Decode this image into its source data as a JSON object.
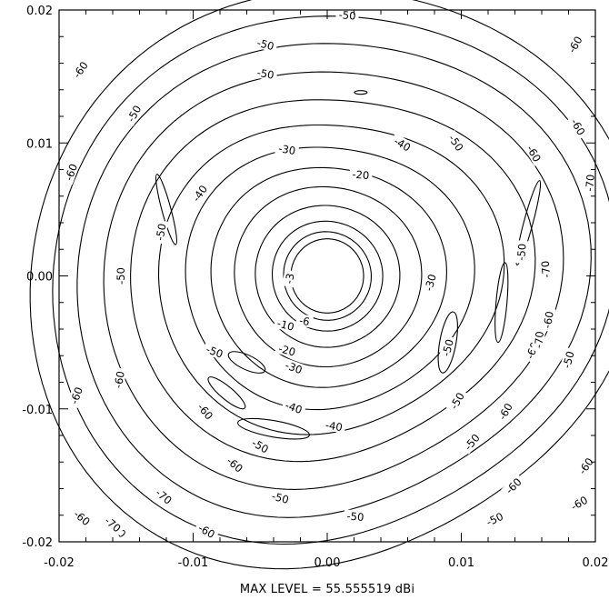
{
  "chart_data": {
    "type": "contour",
    "title": "",
    "xlabel": "",
    "ylabel": "",
    "xlim": [
      -0.02,
      0.02
    ],
    "ylim": [
      -0.02,
      0.02
    ],
    "grid": false,
    "x_ticks": [
      "-0.02",
      "-0.01",
      "0.00",
      "0.01",
      "0.02"
    ],
    "y_ticks": [
      "0.02",
      "0.01",
      "0.00",
      "-0.01",
      "-0.02"
    ],
    "contour_levels": [
      "-3",
      "-6",
      "-10",
      "-20",
      "-30",
      "-40",
      "-50",
      "-60",
      "-70"
    ],
    "caption": "MAX LEVEL = 55.555519 dBi",
    "labels": [
      {
        "text": "-3",
        "x": -0.0028,
        "y": -0.0002,
        "rot": -80
      },
      {
        "text": "-6",
        "x": -0.0017,
        "y": -0.0034,
        "rot": 10
      },
      {
        "text": "-10",
        "x": -0.0031,
        "y": -0.0037,
        "rot": 15
      },
      {
        "text": "-20",
        "x": 0.0025,
        "y": 0.0076,
        "rot": 5
      },
      {
        "text": "-20",
        "x": -0.003,
        "y": -0.0056,
        "rot": 15
      },
      {
        "text": "-30",
        "x": -0.003,
        "y": 0.0095,
        "rot": 10
      },
      {
        "text": "-30",
        "x": 0.0077,
        "y": -0.0005,
        "rot": -75
      },
      {
        "text": "-30",
        "x": -0.0025,
        "y": -0.0069,
        "rot": 20
      },
      {
        "text": "-40",
        "x": -0.0095,
        "y": 0.0062,
        "rot": -55
      },
      {
        "text": "-40",
        "x": 0.0056,
        "y": 0.0099,
        "rot": 30
      },
      {
        "text": "-40",
        "x": -0.0025,
        "y": -0.0099,
        "rot": 20
      },
      {
        "text": "-40",
        "x": 0.0005,
        "y": -0.0113,
        "rot": 10
      },
      {
        "text": "-50",
        "x": 0.0015,
        "y": 0.0196,
        "rot": 5
      },
      {
        "text": "-50",
        "x": -0.0046,
        "y": 0.0174,
        "rot": 15
      },
      {
        "text": "-50",
        "x": -0.0046,
        "y": 0.0152,
        "rot": 10
      },
      {
        "text": "-50",
        "x": -0.0144,
        "y": 0.0122,
        "rot": -60
      },
      {
        "text": "-50",
        "x": -0.0124,
        "y": 0.0033,
        "rot": -80
      },
      {
        "text": "-50",
        "x": -0.0154,
        "y": 0.0,
        "rot": -90
      },
      {
        "text": "-50",
        "x": 0.0096,
        "y": 0.01,
        "rot": 55
      },
      {
        "text": "-50",
        "x": 0.0145,
        "y": 0.0018,
        "rot": -85
      },
      {
        "text": "-50",
        "x": 0.009,
        "y": -0.0054,
        "rot": -75
      },
      {
        "text": "-50",
        "x": 0.0097,
        "y": -0.0094,
        "rot": -60
      },
      {
        "text": "-50",
        "x": 0.0108,
        "y": -0.0125,
        "rot": -50
      },
      {
        "text": "-50",
        "x": 0.018,
        "y": -0.0063,
        "rot": -75
      },
      {
        "text": "-50",
        "x": 0.0125,
        "y": -0.0183,
        "rot": -25
      },
      {
        "text": "-50",
        "x": -0.0084,
        "y": -0.0057,
        "rot": 20
      },
      {
        "text": "-50",
        "x": -0.005,
        "y": -0.0128,
        "rot": 30
      },
      {
        "text": "-50",
        "x": -0.0035,
        "y": -0.0167,
        "rot": 15
      },
      {
        "text": "-50",
        "x": 0.0021,
        "y": -0.0181,
        "rot": 5
      },
      {
        "text": "-60",
        "x": -0.0184,
        "y": 0.0155,
        "rot": -55
      },
      {
        "text": "-60",
        "x": -0.0191,
        "y": 0.0078,
        "rot": -70
      },
      {
        "text": "-60",
        "x": -0.0155,
        "y": -0.0078,
        "rot": -80
      },
      {
        "text": "-60",
        "x": -0.0187,
        "y": -0.009,
        "rot": -70
      },
      {
        "text": "-60",
        "x": -0.0091,
        "y": -0.0102,
        "rot": 50
      },
      {
        "text": "-60",
        "x": -0.0069,
        "y": -0.0142,
        "rot": 40
      },
      {
        "text": "-60",
        "x": -0.009,
        "y": -0.0192,
        "rot": 30
      },
      {
        "text": "-60",
        "x": -0.0183,
        "y": -0.0182,
        "rot": 40
      },
      {
        "text": "-60",
        "x": -0.0156,
        "y": -0.0191,
        "rot": 45
      },
      {
        "text": "-60",
        "x": 0.0185,
        "y": 0.0174,
        "rot": -60
      },
      {
        "text": "-60",
        "x": 0.0154,
        "y": 0.0092,
        "rot": 60
      },
      {
        "text": "-60",
        "x": 0.0187,
        "y": 0.0112,
        "rot": 60
      },
      {
        "text": "-60",
        "x": 0.0165,
        "y": -0.0033,
        "rot": -80
      },
      {
        "text": "-60",
        "x": 0.0153,
        "y": -0.0056,
        "rot": -70
      },
      {
        "text": "-60",
        "x": 0.0133,
        "y": -0.0102,
        "rot": -60
      },
      {
        "text": "-60",
        "x": 0.0139,
        "y": -0.0158,
        "rot": -45
      },
      {
        "text": "-60",
        "x": 0.0188,
        "y": -0.0171,
        "rot": -30
      },
      {
        "text": "-60",
        "x": 0.0193,
        "y": -0.0143,
        "rot": -55
      },
      {
        "text": "-70",
        "x": 0.0196,
        "y": 0.007,
        "rot": -85
      },
      {
        "text": "-70",
        "x": 0.0163,
        "y": 0.0005,
        "rot": -95
      },
      {
        "text": "-70",
        "x": 0.0158,
        "y": -0.0048,
        "rot": -85
      },
      {
        "text": "-70",
        "x": -0.0122,
        "y": -0.0166,
        "rot": 40
      },
      {
        "text": "-70",
        "x": -0.016,
        "y": -0.0187,
        "rot": 40
      }
    ]
  }
}
